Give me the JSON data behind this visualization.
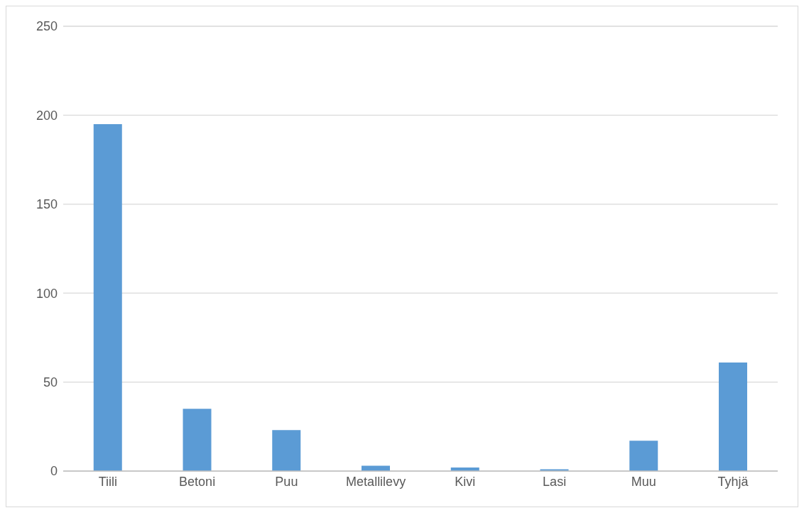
{
  "chart_data": {
    "type": "bar",
    "categories": [
      "Tiili",
      "Betoni",
      "Puu",
      "Metallilevy",
      "Kivi",
      "Lasi",
      "Muu",
      "Tyhjä"
    ],
    "values": [
      195,
      35,
      23,
      3,
      2,
      1,
      17,
      61
    ],
    "color": "#5b9bd5",
    "ylim": [
      0,
      250
    ],
    "yticks": [
      0,
      50,
      100,
      150,
      200,
      250
    ],
    "grid": "y"
  }
}
